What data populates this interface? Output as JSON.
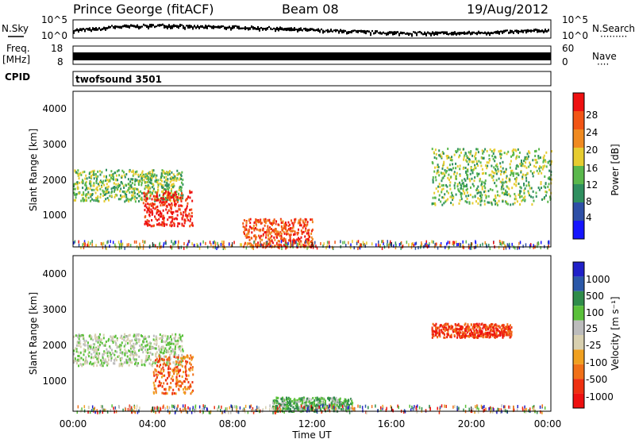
{
  "header": {
    "station": "Prince George (fitACF)",
    "beam": "Beam 08",
    "date": "19/Aug/2012"
  },
  "side_labels": {
    "nsky": "N.Sky",
    "freq": "Freq.",
    "mhz": "[MHz]",
    "cpid": "CPID",
    "nsearch": "N.Search",
    "nave": "Nave",
    "dots_nsearch": "·········",
    "dots_nave": "····"
  },
  "noise_panel": {
    "left_ticks": [
      "10^5",
      "10^0"
    ],
    "right_ticks": [
      "10^5",
      "10^0"
    ]
  },
  "freq_panel": {
    "left_ticks": [
      "18",
      "8"
    ],
    "right_ticks": [
      "60",
      "0"
    ]
  },
  "cpid_panel": {
    "text": "twofsound 3501"
  },
  "colors": {
    "power_scale": [
      "#1515ff",
      "#2e4fa6",
      "#2f8f5f",
      "#5ab84c",
      "#e6cc30",
      "#f08a20",
      "#f25515",
      "#ee1010"
    ],
    "velocity_scale": [
      "#2020c8",
      "#2b58a8",
      "#2f8c4a",
      "#5ac03a",
      "#bcbcbc",
      "#d8d0b0",
      "#f0a020",
      "#f07018",
      "#ee3010",
      "#ee1010"
    ]
  },
  "chart_data": [
    {
      "type": "heatmap",
      "name": "power",
      "xlabel": "Time UT",
      "ylabel": "Slant Range [km]",
      "x_ticks": [
        "00:00",
        "04:00",
        "08:00",
        "12:00",
        "16:00",
        "20:00",
        "00:00"
      ],
      "y_ticks": [
        "1000",
        "2000",
        "3000",
        "4000"
      ],
      "ylim": [
        180,
        4600
      ],
      "colorbar": {
        "label": "Power [dB]",
        "ticks": [
          "4",
          "8",
          "12",
          "16",
          "20",
          "24",
          "28"
        ]
      },
      "regions": [
        {
          "t": [
            0.0,
            5.5
          ],
          "r": [
            1500,
            2400
          ],
          "level": 3
        },
        {
          "t": [
            3.5,
            6.0
          ],
          "r": [
            800,
            1800
          ],
          "level": 7
        },
        {
          "t": [
            8.5,
            12.0
          ],
          "r": [
            200,
            1000
          ],
          "level": 6
        },
        {
          "t": [
            18.0,
            24.0
          ],
          "r": [
            1400,
            3000
          ],
          "level": 3
        }
      ]
    },
    {
      "type": "heatmap",
      "name": "velocity",
      "xlabel": "Time UT",
      "ylabel": "Slant Range [km]",
      "x_ticks": [
        "00:00",
        "04:00",
        "08:00",
        "12:00",
        "16:00",
        "20:00",
        "00:00"
      ],
      "y_ticks": [
        "1000",
        "2000",
        "3000",
        "4000"
      ],
      "ylim": [
        180,
        4600
      ],
      "colorbar": {
        "label": "Velocity [m s⁻¹]",
        "ticks": [
          "1000",
          "500",
          "100",
          "25",
          "-25",
          "-100",
          "-500",
          "-1000"
        ]
      },
      "regions": [
        {
          "t": [
            0.0,
            5.5
          ],
          "r": [
            1500,
            2400
          ],
          "level": 4
        },
        {
          "t": [
            4.0,
            6.0
          ],
          "r": [
            700,
            1800
          ],
          "level": 7
        },
        {
          "t": [
            10.0,
            14.0
          ],
          "r": [
            200,
            600
          ],
          "level": 3
        },
        {
          "t": [
            18.0,
            22.0
          ],
          "r": [
            2300,
            2700
          ],
          "level": 8
        }
      ]
    }
  ]
}
